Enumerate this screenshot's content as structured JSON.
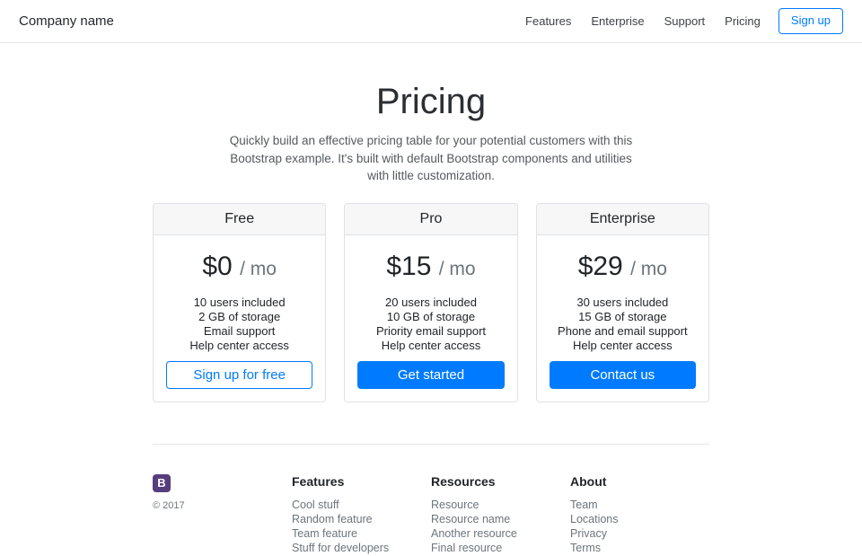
{
  "header": {
    "brand": "Company name",
    "nav": [
      {
        "label": "Features"
      },
      {
        "label": "Enterprise"
      },
      {
        "label": "Support"
      },
      {
        "label": "Pricing"
      }
    ],
    "signup_label": "Sign up"
  },
  "hero": {
    "title": "Pricing",
    "subtitle_lines": [
      "Quickly build an effective pricing table for your potential customers with this",
      "Bootstrap example. It's built with default Bootstrap components and utilities",
      "with little customization."
    ]
  },
  "plans": [
    {
      "name": "Free",
      "price": "$0",
      "period": "/ mo",
      "features": [
        "10 users included",
        "2 GB of storage",
        "Email support",
        "Help center access"
      ],
      "cta": "Sign up for free"
    },
    {
      "name": "Pro",
      "price": "$15",
      "period": "/ mo",
      "features": [
        "20 users included",
        "10 GB of storage",
        "Priority email support",
        "Help center access"
      ],
      "cta": "Get started"
    },
    {
      "name": "Enterprise",
      "price": "$29",
      "period": "/ mo",
      "features": [
        "30 users included",
        "15 GB of storage",
        "Phone and email support",
        "Help center access"
      ],
      "cta": "Contact us"
    }
  ],
  "footer": {
    "logo_letter": "B",
    "copyright": "© 2017",
    "columns": [
      {
        "title": "Features",
        "links": [
          "Cool stuff",
          "Random feature",
          "Team feature",
          "Stuff for developers"
        ]
      },
      {
        "title": "Resources",
        "links": [
          "Resource",
          "Resource name",
          "Another resource",
          "Final resource"
        ]
      },
      {
        "title": "About",
        "links": [
          "Team",
          "Locations",
          "Privacy",
          "Terms"
        ]
      }
    ]
  },
  "colors": {
    "primary_blue": "#007bff",
    "logo_purple": "#563d7c",
    "card_header_bg": "#f7f7f7"
  }
}
